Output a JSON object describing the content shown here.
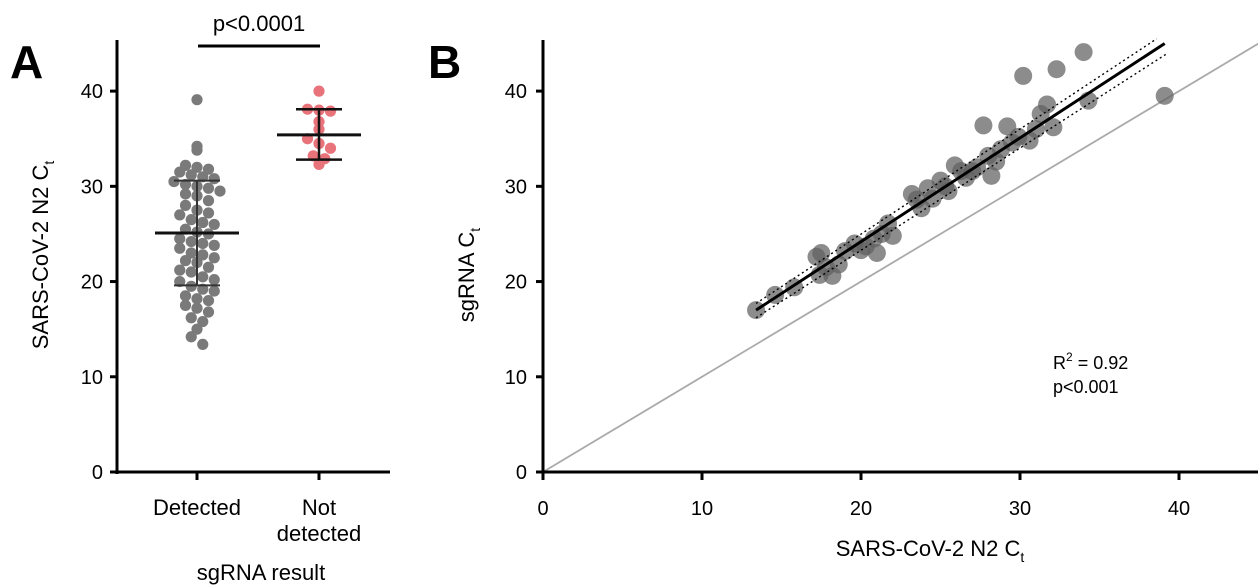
{
  "chart_data": [
    {
      "panel_label": "A",
      "type": "scatter",
      "ylabel_main": "SARS-CoV-2 N2 C",
      "ylabel_sub": "t",
      "xlabel": "sgRNA result",
      "ylim": [
        0,
        45
      ],
      "yticks": [
        0,
        10,
        20,
        30,
        40
      ],
      "grid": false,
      "categories": [
        {
          "line1": "Detected",
          "line2": ""
        },
        {
          "line1": "Not",
          "line2": "detected"
        }
      ],
      "significance_label": "p<0.0001",
      "series": [
        {
          "color": "#7a7a7a",
          "values": [
            39.1,
            34.2,
            33.8,
            32.2,
            32.0,
            31.8,
            31.5,
            31.2,
            31.0,
            30.8,
            30.5,
            30.2,
            30.0,
            29.8,
            29.5,
            29.2,
            29.0,
            28.5,
            28.0,
            27.5,
            27.2,
            27.0,
            26.5,
            26.2,
            26.0,
            25.5,
            25.2,
            25.0,
            24.5,
            24.2,
            24.0,
            23.8,
            23.5,
            23.0,
            22.8,
            22.5,
            22.2,
            22.0,
            21.5,
            21.2,
            21.0,
            20.5,
            20.2,
            20.0,
            19.5,
            19.2,
            19.0,
            18.5,
            18.2,
            18.0,
            17.5,
            17.2,
            16.8,
            16.2,
            15.8,
            15.0,
            14.2,
            13.4
          ],
          "mean": 25.1,
          "sd_low": 19.6,
          "sd_high": 30.6
        },
        {
          "color": "#e8737a",
          "values": [
            40.0,
            38.1,
            38.0,
            37.9,
            36.8,
            36.0,
            35.0,
            34.5,
            34.0,
            33.2,
            32.9,
            32.3
          ],
          "mean": 35.4,
          "sd_low": 32.8,
          "sd_high": 38.1
        }
      ]
    },
    {
      "panel_label": "B",
      "type": "scatter",
      "xlabel_main": "SARS-CoV-2 N2 C",
      "xlabel_sub": "t",
      "ylabel_main": "sgRNA C",
      "ylabel_sub": "t",
      "xlim": [
        0,
        45
      ],
      "ylim": [
        0,
        45
      ],
      "xticks": [
        0,
        10,
        20,
        30,
        40
      ],
      "yticks": [
        0,
        10,
        20,
        30,
        40
      ],
      "grid": false,
      "r2_label": "R",
      "r2_sup": "2",
      "r2_value": " = 0.92",
      "p_label": "p<0.001",
      "fit_line": {
        "x": [
          13.4,
          39.1
        ],
        "y": [
          17.0,
          45.0
        ]
      },
      "ci_upper": {
        "x": [
          13.4,
          38.6
        ],
        "y": [
          17.7,
          45.5
        ]
      },
      "ci_lower": {
        "x": [
          13.4,
          39.3
        ],
        "y": [
          16.2,
          44.0
        ]
      },
      "identity_line": {
        "x": [
          0,
          45
        ],
        "y": [
          0,
          45
        ]
      },
      "points": [
        {
          "x": 13.4,
          "y": 17.0
        },
        {
          "x": 14.6,
          "y": 18.6
        },
        {
          "x": 15.8,
          "y": 19.4
        },
        {
          "x": 17.2,
          "y": 22.6
        },
        {
          "x": 17.5,
          "y": 23.0
        },
        {
          "x": 17.4,
          "y": 20.7
        },
        {
          "x": 17.8,
          "y": 21.5
        },
        {
          "x": 18.2,
          "y": 20.6
        },
        {
          "x": 18.6,
          "y": 21.8
        },
        {
          "x": 19.0,
          "y": 23.2
        },
        {
          "x": 19.6,
          "y": 24.0
        },
        {
          "x": 20.0,
          "y": 23.3
        },
        {
          "x": 20.3,
          "y": 23.7
        },
        {
          "x": 20.8,
          "y": 24.5
        },
        {
          "x": 21.0,
          "y": 23.0
        },
        {
          "x": 21.3,
          "y": 25.0
        },
        {
          "x": 21.7,
          "y": 26.1
        },
        {
          "x": 22.0,
          "y": 24.8
        },
        {
          "x": 23.2,
          "y": 29.2
        },
        {
          "x": 23.5,
          "y": 28.6
        },
        {
          "x": 23.8,
          "y": 27.7
        },
        {
          "x": 24.2,
          "y": 29.8
        },
        {
          "x": 24.5,
          "y": 28.7
        },
        {
          "x": 25.0,
          "y": 30.6
        },
        {
          "x": 25.3,
          "y": 30.0
        },
        {
          "x": 25.5,
          "y": 29.5
        },
        {
          "x": 25.9,
          "y": 32.2
        },
        {
          "x": 26.3,
          "y": 31.6
        },
        {
          "x": 26.6,
          "y": 30.9
        },
        {
          "x": 27.0,
          "y": 31.6
        },
        {
          "x": 27.3,
          "y": 32.0
        },
        {
          "x": 27.7,
          "y": 36.4
        },
        {
          "x": 28.0,
          "y": 33.2
        },
        {
          "x": 28.2,
          "y": 31.1
        },
        {
          "x": 28.5,
          "y": 32.6
        },
        {
          "x": 28.8,
          "y": 33.9
        },
        {
          "x": 29.2,
          "y": 36.3
        },
        {
          "x": 29.5,
          "y": 34.6
        },
        {
          "x": 29.9,
          "y": 35.2
        },
        {
          "x": 30.2,
          "y": 41.6
        },
        {
          "x": 30.6,
          "y": 34.8
        },
        {
          "x": 31.0,
          "y": 36.0
        },
        {
          "x": 31.3,
          "y": 37.6
        },
        {
          "x": 31.7,
          "y": 38.6
        },
        {
          "x": 32.1,
          "y": 36.2
        },
        {
          "x": 32.3,
          "y": 42.3
        },
        {
          "x": 34.0,
          "y": 44.1
        },
        {
          "x": 34.3,
          "y": 39.0
        },
        {
          "x": 39.1,
          "y": 39.5
        }
      ]
    }
  ]
}
